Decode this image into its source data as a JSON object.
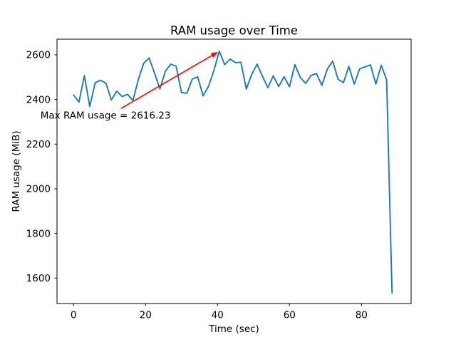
{
  "chart_data": {
    "type": "line",
    "title": "RAM usage over Time",
    "xlabel": "Time (sec)",
    "ylabel": "RAM usage (MiB)",
    "xlim": [
      -4.6,
      93.8
    ],
    "ylim": [
      1486,
      2670
    ],
    "x_ticks": [
      0,
      20,
      40,
      60,
      80
    ],
    "y_ticks": [
      1600,
      1800,
      2000,
      2200,
      2400,
      2600
    ],
    "grid": false,
    "legend": null,
    "line_color": "#1f77b4",
    "x": [
      0,
      1.5,
      3,
      4.5,
      6,
      7.5,
      9,
      10.5,
      12,
      13.5,
      15,
      16.5,
      18,
      19.5,
      21,
      22.5,
      24,
      25.5,
      27,
      28.5,
      30,
      31.5,
      33,
      34.5,
      36,
      37.5,
      39,
      40.5,
      42,
      43.5,
      45,
      46.5,
      48,
      49.5,
      51,
      52.5,
      54,
      55.5,
      57,
      58.5,
      60,
      61.5,
      63,
      64.5,
      66,
      67.5,
      69,
      70.5,
      72,
      73.5,
      75,
      76.5,
      78,
      79.5,
      81,
      82.5,
      84,
      85.5,
      87,
      88.5
    ],
    "y": [
      2420,
      2388,
      2507,
      2368,
      2475,
      2486,
      2473,
      2398,
      2437,
      2413,
      2423,
      2395,
      2490,
      2562,
      2586,
      2518,
      2447,
      2526,
      2558,
      2549,
      2431,
      2428,
      2492,
      2501,
      2416,
      2459,
      2530,
      2616.23,
      2556,
      2581,
      2565,
      2567,
      2447,
      2512,
      2558,
      2504,
      2453,
      2506,
      2458,
      2502,
      2457,
      2556,
      2499,
      2472,
      2508,
      2516,
      2463,
      2535,
      2572,
      2490,
      2476,
      2548,
      2469,
      2537,
      2546,
      2555,
      2469,
      2553,
      2488,
      1533
    ],
    "max_value": 2616.23,
    "annotation": {
      "text": "Max RAM usage = 2616.23",
      "color": "#ff0000",
      "xy": [
        40.5,
        2616.23
      ],
      "arrow_tail_xy": [
        13.2,
        2360
      ],
      "text_xy": [
        -9.2,
        2314
      ]
    }
  }
}
